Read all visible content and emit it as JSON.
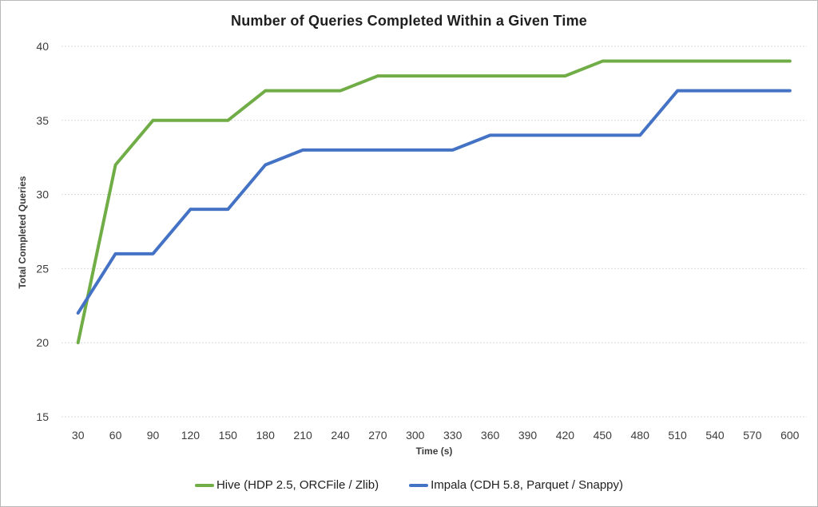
{
  "chart_data": {
    "type": "line",
    "title": "Number of Queries Completed Within a Given Time",
    "xlabel": "Time (s)",
    "ylabel": "Total Completed Queries",
    "x": [
      30,
      60,
      90,
      120,
      150,
      180,
      210,
      240,
      270,
      300,
      330,
      360,
      390,
      420,
      450,
      480,
      510,
      540,
      570,
      600
    ],
    "series": [
      {
        "name": "Hive (HDP 2.5, ORCFile / Zlib)",
        "color": "#70AD47",
        "values": [
          20,
          32,
          35,
          35,
          35,
          37,
          37,
          37,
          38,
          38,
          38,
          38,
          38,
          38,
          39,
          39,
          39,
          39,
          39,
          39
        ]
      },
      {
        "name": "Impala (CDH 5.8, Parquet / Snappy)",
        "color": "#4472C4",
        "values": [
          22,
          26,
          26,
          29,
          29,
          32,
          33,
          33,
          33,
          33,
          33,
          34,
          34,
          34,
          34,
          34,
          37,
          37,
          37,
          37
        ]
      }
    ],
    "yticks": [
      15,
      20,
      25,
      30,
      35,
      40
    ],
    "ylim": [
      15,
      40
    ],
    "xlim": [
      30,
      600
    ],
    "grid": true,
    "legend_position": "bottom",
    "colors": {
      "grid": "#D9D9D9",
      "axis_text": "#3C3C3C",
      "title_text": "#1F1F1F",
      "frame_border": "#B9B9B9"
    }
  }
}
